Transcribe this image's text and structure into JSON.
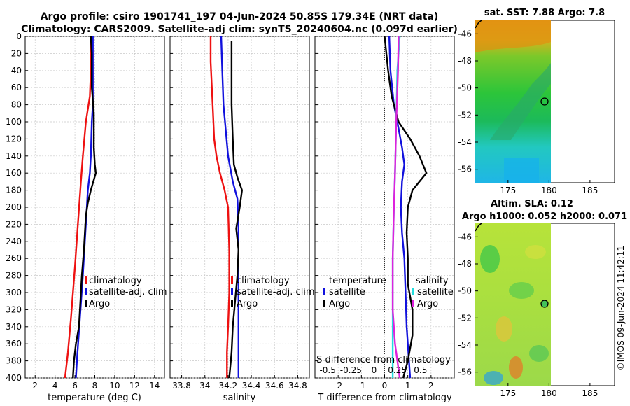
{
  "title": {
    "line1": "Argo profile: csiro 1901741_197 04-Jun-2024 50.85S 179.34E (NRT data)",
    "line2": "Climatology: CARS2009. Satellite-adj clim: synTS_20240604.nc (0.097d earlier)"
  },
  "colors": {
    "climatology": "#ee1111",
    "satellite": "#1111dd",
    "argo": "#000000",
    "cyan": "#22dddd",
    "magenta": "#dd22dd"
  },
  "chart_data": [
    {
      "type": "line",
      "id": "temperature",
      "xlabel": "temperature (deg C)",
      "ylabel": "",
      "xlim": [
        1,
        15
      ],
      "ylim": [
        400,
        0
      ],
      "xticks": [
        2,
        4,
        6,
        8,
        10,
        12,
        14
      ],
      "xtick_labels": [
        "2",
        "4",
        "6",
        "8",
        "10",
        "12",
        "14"
      ],
      "yticks": [
        0,
        20,
        40,
        60,
        80,
        100,
        120,
        140,
        160,
        180,
        200,
        220,
        240,
        260,
        280,
        300,
        320,
        340,
        360,
        380,
        400
      ],
      "ytick_labels": [
        "0",
        "20",
        "40",
        "60",
        "80",
        "100",
        "120",
        "140",
        "160",
        "180",
        "200",
        "220",
        "240",
        "260",
        "280",
        "300",
        "320",
        "340",
        "360",
        "380",
        "400"
      ],
      "legend": [
        "climatology",
        "satellite-adj. clim",
        "Argo"
      ],
      "series": [
        {
          "name": "climatology",
          "color": "#ee1111",
          "points": [
            [
              7.6,
              0
            ],
            [
              7.6,
              40
            ],
            [
              7.5,
              70
            ],
            [
              7.1,
              100
            ],
            [
              6.8,
              140
            ],
            [
              6.6,
              170
            ],
            [
              6.3,
              220
            ],
            [
              6.0,
              270
            ],
            [
              5.6,
              330
            ],
            [
              5.3,
              370
            ],
            [
              5.0,
              400
            ]
          ]
        },
        {
          "name": "satellite-adj. clim",
          "color": "#1111dd",
          "points": [
            [
              7.8,
              0
            ],
            [
              7.8,
              40
            ],
            [
              7.8,
              80
            ],
            [
              7.7,
              100
            ],
            [
              7.6,
              140
            ],
            [
              7.5,
              160
            ],
            [
              7.3,
              180
            ],
            [
              7.1,
              220
            ],
            [
              6.8,
              280
            ],
            [
              6.5,
              330
            ],
            [
              6.2,
              380
            ],
            [
              6.1,
              400
            ]
          ]
        },
        {
          "name": "Argo",
          "color": "#000000",
          "points": [
            [
              7.6,
              0
            ],
            [
              7.7,
              20
            ],
            [
              7.7,
              60
            ],
            [
              7.9,
              90
            ],
            [
              7.9,
              130
            ],
            [
              8.0,
              150
            ],
            [
              8.1,
              160
            ],
            [
              7.6,
              180
            ],
            [
              7.3,
              195
            ],
            [
              7.1,
              210
            ],
            [
              7.0,
              230
            ],
            [
              6.9,
              250
            ],
            [
              6.7,
              280
            ],
            [
              6.6,
              300
            ],
            [
              6.5,
              320
            ],
            [
              6.4,
              340
            ],
            [
              6.1,
              360
            ],
            [
              5.9,
              380
            ],
            [
              5.8,
              400
            ]
          ]
        }
      ]
    },
    {
      "type": "line",
      "id": "salinity",
      "xlabel": "salinity",
      "ylabel": "",
      "xlim": [
        33.7,
        34.9
      ],
      "ylim": [
        400,
        0
      ],
      "xticks": [
        33.8,
        34.0,
        34.2,
        34.4,
        34.6,
        34.8
      ],
      "xtick_labels": [
        "33.8",
        "34",
        "34.2",
        "34.4",
        "34.6",
        "34.8"
      ],
      "legend": [
        "climatology",
        "satellite-adj. clim",
        "Argo"
      ],
      "series": [
        {
          "name": "climatology",
          "color": "#ee1111",
          "points": [
            [
              34.05,
              0
            ],
            [
              34.05,
              30
            ],
            [
              34.06,
              60
            ],
            [
              34.07,
              90
            ],
            [
              34.08,
              120
            ],
            [
              34.1,
              140
            ],
            [
              34.13,
              160
            ],
            [
              34.17,
              180
            ],
            [
              34.2,
              200
            ],
            [
              34.21,
              250
            ],
            [
              34.21,
              300
            ],
            [
              34.2,
              340
            ],
            [
              34.19,
              370
            ],
            [
              34.19,
              400
            ]
          ]
        },
        {
          "name": "satellite-adj. clim",
          "color": "#1111dd",
          "points": [
            [
              34.14,
              0
            ],
            [
              34.15,
              40
            ],
            [
              34.16,
              80
            ],
            [
              34.18,
              110
            ],
            [
              34.2,
              140
            ],
            [
              34.24,
              170
            ],
            [
              34.28,
              190
            ],
            [
              34.29,
              220
            ],
            [
              34.29,
              300
            ],
            [
              34.29,
              400
            ]
          ]
        },
        {
          "name": "Argo",
          "color": "#000000",
          "points": [
            [
              34.23,
              5
            ],
            [
              34.23,
              40
            ],
            [
              34.23,
              80
            ],
            [
              34.24,
              120
            ],
            [
              34.25,
              150
            ],
            [
              34.28,
              165
            ],
            [
              34.32,
              180
            ],
            [
              34.3,
              200
            ],
            [
              34.27,
              225
            ],
            [
              34.29,
              250
            ],
            [
              34.28,
              280
            ],
            [
              34.26,
              310
            ],
            [
              34.24,
              340
            ],
            [
              34.23,
              370
            ],
            [
              34.21,
              400
            ]
          ]
        }
      ]
    },
    {
      "type": "line",
      "id": "difference",
      "xlabel": "T difference from climatology",
      "ylabel": "",
      "xlim": [
        -3,
        3
      ],
      "ylim": [
        400,
        0
      ],
      "xticks": [
        -2,
        -1,
        0,
        1,
        2
      ],
      "xtick_labels": [
        "-2",
        "-1",
        "0",
        "1",
        "2"
      ],
      "top_label": "S difference from climatology",
      "top_ticks": [
        -0.5,
        -0.25,
        0,
        0.25,
        0.5
      ],
      "top_tick_labels": [
        "-0.5",
        "-0.25",
        "0",
        "0.25",
        "0.5"
      ],
      "legend_left_title": "temperature",
      "legend_left": [
        "satellite",
        "Argo"
      ],
      "legend_right_title": "salinity",
      "legend_right": [
        "satellite",
        "Argo"
      ],
      "series": [
        {
          "name": "temperature satellite",
          "color": "#1111dd",
          "points": [
            [
              0.2,
              0
            ],
            [
              0.25,
              40
            ],
            [
              0.4,
              80
            ],
            [
              0.55,
              100
            ],
            [
              0.75,
              130
            ],
            [
              0.85,
              150
            ],
            [
              0.75,
              170
            ],
            [
              0.7,
              200
            ],
            [
              0.75,
              230
            ],
            [
              0.85,
              260
            ],
            [
              0.9,
              300
            ],
            [
              0.95,
              340
            ],
            [
              1.05,
              380
            ],
            [
              1.1,
              400
            ]
          ]
        },
        {
          "name": "temperature Argo",
          "color": "#000000",
          "points": [
            [
              0.0,
              0
            ],
            [
              0.15,
              40
            ],
            [
              0.3,
              70
            ],
            [
              0.6,
              100
            ],
            [
              1.1,
              120
            ],
            [
              1.5,
              140
            ],
            [
              1.8,
              160
            ],
            [
              1.2,
              180
            ],
            [
              1.0,
              200
            ],
            [
              0.95,
              230
            ],
            [
              1.0,
              260
            ],
            [
              1.0,
              290
            ],
            [
              1.2,
              320
            ],
            [
              1.2,
              350
            ],
            [
              1.0,
              380
            ],
            [
              0.8,
              400
            ]
          ]
        },
        {
          "name": "salinity satellite",
          "color": "#22dddd",
          "points": [
            [
              0.65,
              0
            ],
            [
              0.55,
              40
            ],
            [
              0.5,
              100
            ],
            [
              0.45,
              160
            ],
            [
              0.4,
              200
            ],
            [
              0.35,
              260
            ],
            [
              0.35,
              320
            ],
            [
              0.35,
              400
            ]
          ]
        },
        {
          "name": "salinity Argo",
          "color": "#dd22dd",
          "points": [
            [
              0.6,
              0
            ],
            [
              0.58,
              40
            ],
            [
              0.5,
              100
            ],
            [
              0.45,
              160
            ],
            [
              0.4,
              200
            ],
            [
              0.35,
              260
            ],
            [
              0.35,
              320
            ],
            [
              0.45,
              360
            ],
            [
              0.65,
              400
            ]
          ]
        }
      ]
    },
    {
      "type": "heatmap",
      "id": "sst_map",
      "title": "sat. SST: 7.88 Argo: 7.8",
      "xlim": [
        171,
        188
      ],
      "ylim": [
        -57,
        -45
      ],
      "xticks": [
        175,
        180,
        185
      ],
      "xtick_labels": [
        "175",
        "180",
        "185"
      ],
      "yticks": [
        -46,
        -48,
        -50,
        -52,
        -54,
        -56
      ],
      "ytick_labels": [
        "-46",
        "-48",
        "-50",
        "-52",
        "-54",
        "-56"
      ],
      "argo_position": [
        179.34,
        -50.85
      ]
    },
    {
      "type": "heatmap",
      "id": "sla_map",
      "title_line1": "Altim. SLA: 0.12",
      "title_line2": "Argo h1000: 0.052 h2000: 0.071",
      "xlim": [
        171,
        188
      ],
      "ylim": [
        -57,
        -45
      ],
      "xticks": [
        175,
        180,
        185
      ],
      "xtick_labels": [
        "175",
        "180",
        "185"
      ],
      "yticks": [
        -46,
        -48,
        -50,
        -52,
        -54,
        -56
      ],
      "ytick_labels": [
        "-46",
        "-48",
        "-50",
        "-52",
        "-54",
        "-56"
      ],
      "argo_position": [
        179.34,
        -50.85
      ]
    }
  ],
  "watermark": "©IMOS 09-Jun-2024 11:42:11"
}
